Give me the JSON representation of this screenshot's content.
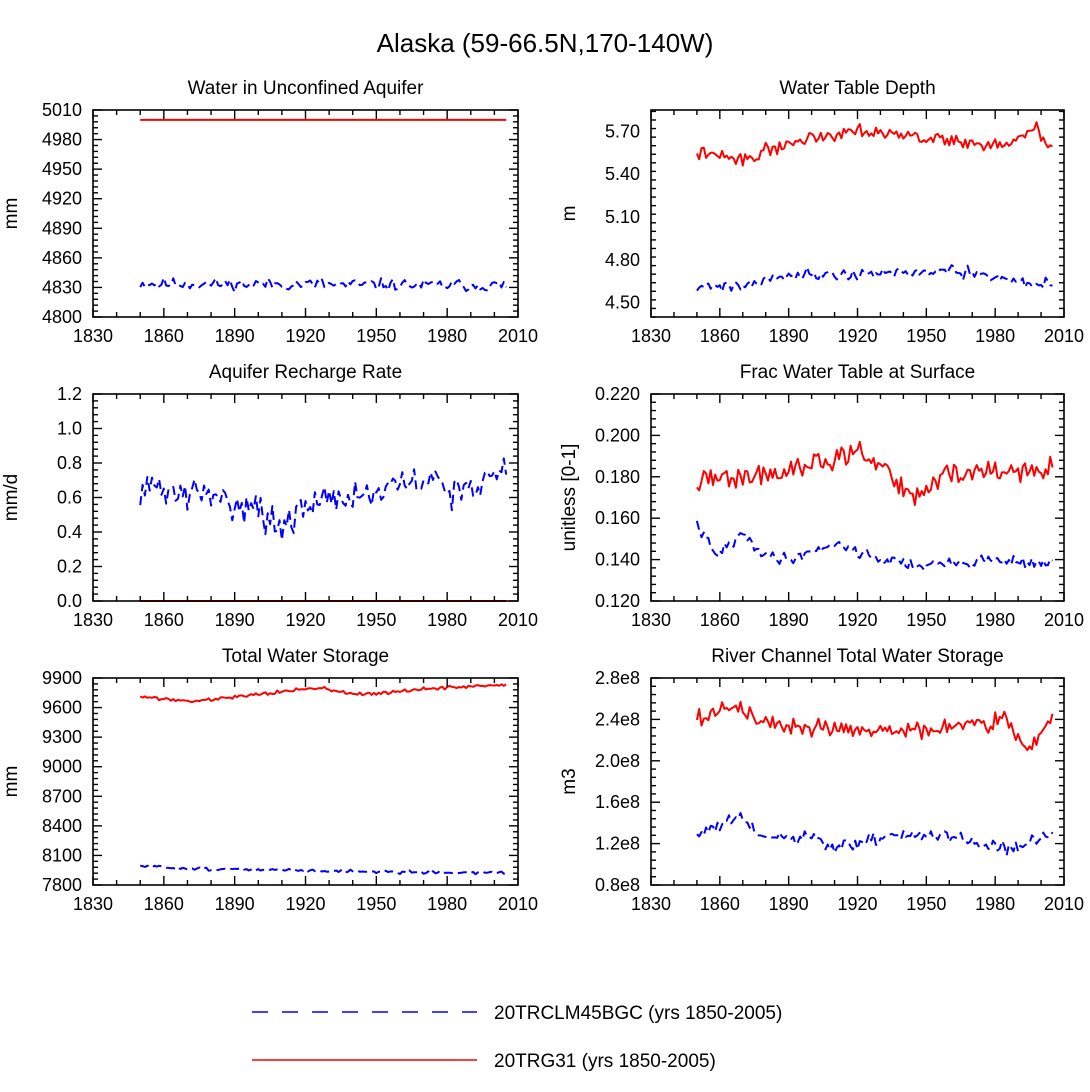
{
  "title": "Alaska (59-66.5N,170-140W)",
  "colors": {
    "ctrl": "#0000ff",
    "exp": "#ff0000",
    "axis": "#000000"
  },
  "legend": [
    {
      "key": "ctrl",
      "label": "20TRCLM45BGC (yrs 1850-2005)",
      "style": "dashed"
    },
    {
      "key": "exp",
      "label": "20TRG31 (yrs 1850-2005)",
      "style": "solid"
    }
  ],
  "chart_data": [
    {
      "id": "p1",
      "type": "line",
      "title": "Water in Unconfined Aquifer",
      "ylabel": "mm",
      "xlim": [
        1830,
        2010
      ],
      "xticks": [
        1830,
        1860,
        1890,
        1920,
        1950,
        1980,
        2010
      ],
      "xticklabels": [
        "1830",
        "1860",
        "1890",
        "1920",
        "1950",
        "1980",
        "2010"
      ],
      "ylim": [
        4800,
        5010
      ],
      "yticks": [
        4800,
        4830,
        4860,
        4890,
        4920,
        4950,
        4980,
        5010
      ],
      "yticklabels": [
        "4800",
        "4830",
        "4860",
        "4890",
        "4920",
        "4950",
        "4980",
        "5010"
      ],
      "series": [
        {
          "name": "20TRCLM45BGC",
          "key": "ctrl",
          "x_start": 1850,
          "x_end": 2005,
          "base": 4830,
          "amp": 9,
          "seed": 11,
          "keys": [
            [
              1850,
              4834
            ],
            [
              2005,
              4832
            ]
          ]
        },
        {
          "name": "20TRG31",
          "key": "exp",
          "x_start": 1850,
          "x_end": 2005,
          "base": 5000,
          "amp": 0,
          "seed": 12,
          "keys": [
            [
              1850,
              5000
            ],
            [
              2005,
              5000
            ]
          ]
        }
      ]
    },
    {
      "id": "p2",
      "type": "line",
      "title": "Water Table Depth",
      "ylabel": "m",
      "xlim": [
        1830,
        2010
      ],
      "xticks": [
        1830,
        1860,
        1890,
        1920,
        1950,
        1980,
        2010
      ],
      "xticklabels": [
        "1830",
        "1860",
        "1890",
        "1920",
        "1950",
        "1980",
        "2010"
      ],
      "ylim": [
        4.4,
        5.85
      ],
      "yticks": [
        4.5,
        4.8,
        5.1,
        5.4,
        5.7
      ],
      "yticklabels": [
        "4.50",
        "4.80",
        "5.10",
        "5.40",
        "5.70"
      ],
      "series": [
        {
          "name": "20TRCLM45BGC",
          "key": "ctrl",
          "x_start": 1850,
          "x_end": 2005,
          "amp": 0.06,
          "seed": 21,
          "keys": [
            [
              1850,
              4.62
            ],
            [
              1870,
              4.62
            ],
            [
              1890,
              4.7
            ],
            [
              1920,
              4.7
            ],
            [
              1960,
              4.72
            ],
            [
              2005,
              4.62
            ]
          ]
        },
        {
          "name": "20TRG31",
          "key": "exp",
          "x_start": 1850,
          "x_end": 2005,
          "amp": 0.07,
          "seed": 22,
          "keys": [
            [
              1850,
              5.55
            ],
            [
              1870,
              5.5
            ],
            [
              1890,
              5.62
            ],
            [
              1920,
              5.72
            ],
            [
              1950,
              5.65
            ],
            [
              1985,
              5.6
            ],
            [
              1998,
              5.72
            ],
            [
              2005,
              5.57
            ]
          ]
        }
      ]
    },
    {
      "id": "p3",
      "type": "line",
      "title": "Aquifer Recharge Rate",
      "ylabel": "mm/d",
      "xlim": [
        1830,
        2010
      ],
      "xticks": [
        1830,
        1860,
        1890,
        1920,
        1950,
        1980,
        2010
      ],
      "xticklabels": [
        "1830",
        "1860",
        "1890",
        "1920",
        "1950",
        "1980",
        "2010"
      ],
      "ylim": [
        0,
        1.2
      ],
      "yticks": [
        0,
        0.2,
        0.4,
        0.6,
        0.8,
        1.0,
        1.2
      ],
      "yticklabels": [
        "0.0",
        "0.2",
        "0.4",
        "0.6",
        "0.8",
        "1.0",
        "1.2"
      ],
      "series": [
        {
          "name": "20TRCLM45BGC",
          "key": "ctrl",
          "x_start": 1850,
          "x_end": 2005,
          "amp": 0.14,
          "seed": 31,
          "keys": [
            [
              1850,
              0.66
            ],
            [
              1880,
              0.6
            ],
            [
              1900,
              0.55
            ],
            [
              1910,
              0.4
            ],
            [
              1925,
              0.6
            ],
            [
              1950,
              0.62
            ],
            [
              1970,
              0.7
            ],
            [
              1990,
              0.62
            ],
            [
              2005,
              0.8
            ]
          ]
        },
        {
          "name": "20TRG31",
          "key": "exp",
          "x_start": 1850,
          "x_end": 2005,
          "amp": 0,
          "seed": 32,
          "keys": [
            [
              1850,
              0.0
            ],
            [
              2005,
              0.0
            ]
          ]
        }
      ]
    },
    {
      "id": "p4",
      "type": "line",
      "title": "Frac Water Table at Surface",
      "ylabel": "unitless [0-1]",
      "xlim": [
        1830,
        2010
      ],
      "xticks": [
        1830,
        1860,
        1890,
        1920,
        1950,
        1980,
        2010
      ],
      "xticklabels": [
        "1830",
        "1860",
        "1890",
        "1920",
        "1950",
        "1980",
        "2010"
      ],
      "ylim": [
        0.12,
        0.22
      ],
      "yticks": [
        0.12,
        0.14,
        0.16,
        0.18,
        0.2,
        0.22
      ],
      "yticklabels": [
        "0.120",
        "0.140",
        "0.160",
        "0.180",
        "0.200",
        "0.220"
      ],
      "series": [
        {
          "name": "20TRCLM45BGC",
          "key": "ctrl",
          "x_start": 1850,
          "x_end": 2005,
          "amp": 0.004,
          "seed": 41,
          "keys": [
            [
              1850,
              0.157
            ],
            [
              1858,
              0.142
            ],
            [
              1870,
              0.152
            ],
            [
              1880,
              0.142
            ],
            [
              1890,
              0.14
            ],
            [
              1910,
              0.148
            ],
            [
              1930,
              0.14
            ],
            [
              1950,
              0.137
            ],
            [
              1980,
              0.14
            ],
            [
              2005,
              0.138
            ]
          ]
        },
        {
          "name": "20TRG31",
          "key": "exp",
          "x_start": 1850,
          "x_end": 2005,
          "amp": 0.008,
          "seed": 42,
          "keys": [
            [
              1850,
              0.178
            ],
            [
              1870,
              0.18
            ],
            [
              1890,
              0.182
            ],
            [
              1920,
              0.192
            ],
            [
              1935,
              0.18
            ],
            [
              1945,
              0.17
            ],
            [
              1960,
              0.182
            ],
            [
              1980,
              0.182
            ],
            [
              2005,
              0.184
            ]
          ]
        }
      ]
    },
    {
      "id": "p5",
      "type": "line",
      "title": "Total Water Storage",
      "ylabel": "mm",
      "xlim": [
        1830,
        2010
      ],
      "xticks": [
        1830,
        1860,
        1890,
        1920,
        1950,
        1980,
        2010
      ],
      "xticklabels": [
        "1830",
        "1860",
        "1890",
        "1920",
        "1950",
        "1980",
        "2010"
      ],
      "ylim": [
        7800,
        9900
      ],
      "yticks": [
        7800,
        8100,
        8400,
        8700,
        9000,
        9300,
        9600,
        9900
      ],
      "yticklabels": [
        "7800",
        "8100",
        "8400",
        "8700",
        "9000",
        "9300",
        "9600",
        "9900"
      ],
      "series": [
        {
          "name": "20TRCLM45BGC",
          "key": "ctrl",
          "x_start": 1850,
          "x_end": 2005,
          "amp": 22,
          "seed": 51,
          "keys": [
            [
              1850,
              7990
            ],
            [
              1880,
              7960
            ],
            [
              1920,
              7950
            ],
            [
              1960,
              7930
            ],
            [
              2005,
              7925
            ]
          ]
        },
        {
          "name": "20TRG31",
          "key": "exp",
          "x_start": 1850,
          "x_end": 2005,
          "amp": 25,
          "seed": 52,
          "keys": [
            [
              1850,
              9710
            ],
            [
              1872,
              9660
            ],
            [
              1900,
              9740
            ],
            [
              1925,
              9800
            ],
            [
              1945,
              9730
            ],
            [
              1970,
              9790
            ],
            [
              2005,
              9830
            ]
          ]
        }
      ]
    },
    {
      "id": "p6",
      "type": "line",
      "title": "River Channel Total Water Storage",
      "ylabel": "m3",
      "xlim": [
        1830,
        2010
      ],
      "xticks": [
        1830,
        1860,
        1890,
        1920,
        1950,
        1980,
        2010
      ],
      "xticklabels": [
        "1830",
        "1860",
        "1890",
        "1920",
        "1950",
        "1980",
        "2010"
      ],
      "ylim": [
        0.8,
        2.8
      ],
      "yticks": [
        0.8,
        1.2,
        1.6,
        2.0,
        2.4,
        2.8
      ],
      "yticklabels": [
        "0.8e8",
        "1.2e8",
        "1.6e8",
        "2.0e8",
        "2.4e8",
        "2.8e8"
      ],
      "series": [
        {
          "name": "20TRCLM45BGC",
          "key": "ctrl",
          "x_start": 1850,
          "x_end": 2005,
          "amp": 0.1,
          "seed": 61,
          "keys": [
            [
              1850,
              1.28
            ],
            [
              1868,
              1.45
            ],
            [
              1880,
              1.25
            ],
            [
              1900,
              1.25
            ],
            [
              1910,
              1.15
            ],
            [
              1940,
              1.3
            ],
            [
              1960,
              1.25
            ],
            [
              1990,
              1.15
            ],
            [
              2005,
              1.3
            ]
          ]
        },
        {
          "name": "20TRG31",
          "key": "exp",
          "x_start": 1850,
          "x_end": 2005,
          "amp": 0.12,
          "seed": 62,
          "keys": [
            [
              1850,
              2.4
            ],
            [
              1868,
              2.55
            ],
            [
              1880,
              2.35
            ],
            [
              1920,
              2.3
            ],
            [
              1950,
              2.3
            ],
            [
              1985,
              2.4
            ],
            [
              1995,
              2.1
            ],
            [
              2005,
              2.4
            ]
          ]
        }
      ]
    }
  ]
}
